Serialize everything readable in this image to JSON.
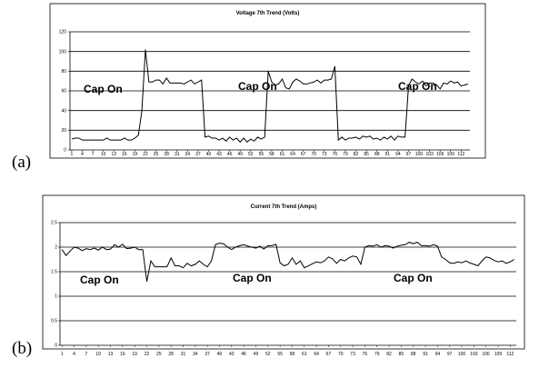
{
  "panel_labels": [
    "(a)",
    "(b)"
  ],
  "chart_data": [
    {
      "type": "line",
      "title": "Voltage 7th Trend (Volts)",
      "xlabel": "",
      "ylabel": "",
      "ylim": [
        0,
        120
      ],
      "yticks": [
        0,
        20,
        40,
        60,
        80,
        100,
        120
      ],
      "grid": true,
      "xtick_labels": [
        "1",
        "4",
        "7",
        "10",
        "13",
        "16",
        "19",
        "22",
        "25",
        "28",
        "31",
        "34",
        "37",
        "40",
        "43",
        "46",
        "49",
        "52",
        "55",
        "58",
        "61",
        "64",
        "67",
        "70",
        "73",
        "76",
        "79",
        "82",
        "85",
        "88",
        "91",
        "94",
        "97",
        "100",
        "103",
        "106",
        "109",
        "112"
      ],
      "annotations": [
        "Cap On",
        "Cap On",
        "Cap On"
      ],
      "series": [
        {
          "values": [
            11,
            12,
            12,
            10,
            10,
            10,
            10,
            10,
            10,
            10,
            12,
            10,
            10,
            10,
            10,
            12,
            10,
            10,
            12,
            15,
            40,
            102,
            69,
            69,
            71,
            71,
            67,
            73,
            68,
            68,
            68,
            68,
            67,
            69,
            71,
            67,
            69,
            71,
            13,
            14,
            12,
            12,
            10,
            12,
            9,
            13,
            10,
            12,
            8,
            12,
            8,
            11,
            9,
            13,
            11,
            13,
            80,
            69,
            66,
            67,
            72,
            63,
            62,
            69,
            72,
            70,
            67,
            67,
            68,
            69,
            71,
            68,
            71,
            71,
            72,
            85,
            10,
            13,
            10,
            12,
            12,
            13,
            11,
            14,
            13,
            14,
            11,
            12,
            10,
            13,
            11,
            14,
            10,
            14,
            13,
            13,
            65,
            72,
            69,
            67,
            70,
            65,
            68,
            68,
            66,
            62,
            68,
            67,
            70,
            68,
            69,
            65,
            66,
            67
          ]
        }
      ]
    },
    {
      "type": "line",
      "title": "Current 7th Trend (Amps)",
      "xlabel": "",
      "ylabel": "",
      "ylim": [
        0,
        2.5
      ],
      "yticks": [
        0,
        0.5,
        1,
        1.5,
        2,
        2.5
      ],
      "grid": true,
      "xtick_labels": [
        "1",
        "4",
        "7",
        "10",
        "13",
        "16",
        "19",
        "22",
        "25",
        "28",
        "31",
        "34",
        "37",
        "40",
        "43",
        "46",
        "49",
        "52",
        "55",
        "58",
        "61",
        "64",
        "67",
        "70",
        "73",
        "76",
        "79",
        "82",
        "85",
        "88",
        "91",
        "94",
        "97",
        "100",
        "103",
        "106",
        "109",
        "112"
      ],
      "annotations": [
        "Cap On",
        "Cap On",
        "Cap On"
      ],
      "series": [
        {
          "values": [
            1.95,
            1.83,
            1.92,
            2.0,
            1.98,
            1.93,
            1.97,
            1.95,
            1.98,
            1.94,
            2.0,
            1.95,
            1.96,
            2.05,
            2.0,
            2.06,
            1.97,
            1.98,
            2.0,
            1.95,
            1.95,
            1.3,
            1.72,
            1.6,
            1.6,
            1.6,
            1.6,
            1.78,
            1.62,
            1.62,
            1.58,
            1.67,
            1.62,
            1.65,
            1.72,
            1.65,
            1.6,
            1.72,
            2.05,
            2.08,
            2.07,
            2.0,
            1.95,
            2.0,
            2.03,
            2.05,
            2.02,
            2.0,
            1.98,
            2.02,
            1.96,
            2.03,
            2.03,
            2.06,
            1.68,
            1.62,
            1.65,
            1.78,
            1.65,
            1.72,
            1.58,
            1.62,
            1.66,
            1.7,
            1.68,
            1.72,
            1.8,
            1.76,
            1.67,
            1.75,
            1.72,
            1.78,
            1.82,
            1.8,
            1.65,
            2.0,
            2.03,
            2.02,
            2.05,
            2.0,
            2.03,
            2.02,
            1.98,
            2.02,
            2.04,
            2.05,
            2.1,
            2.07,
            2.1,
            2.03,
            2.03,
            2.02,
            2.05,
            2.02,
            1.8,
            1.75,
            1.68,
            1.67,
            1.7,
            1.68,
            1.72,
            1.68,
            1.65,
            1.62,
            1.72,
            1.8,
            1.78,
            1.73,
            1.7,
            1.72,
            1.67,
            1.7,
            1.75
          ]
        }
      ]
    }
  ]
}
